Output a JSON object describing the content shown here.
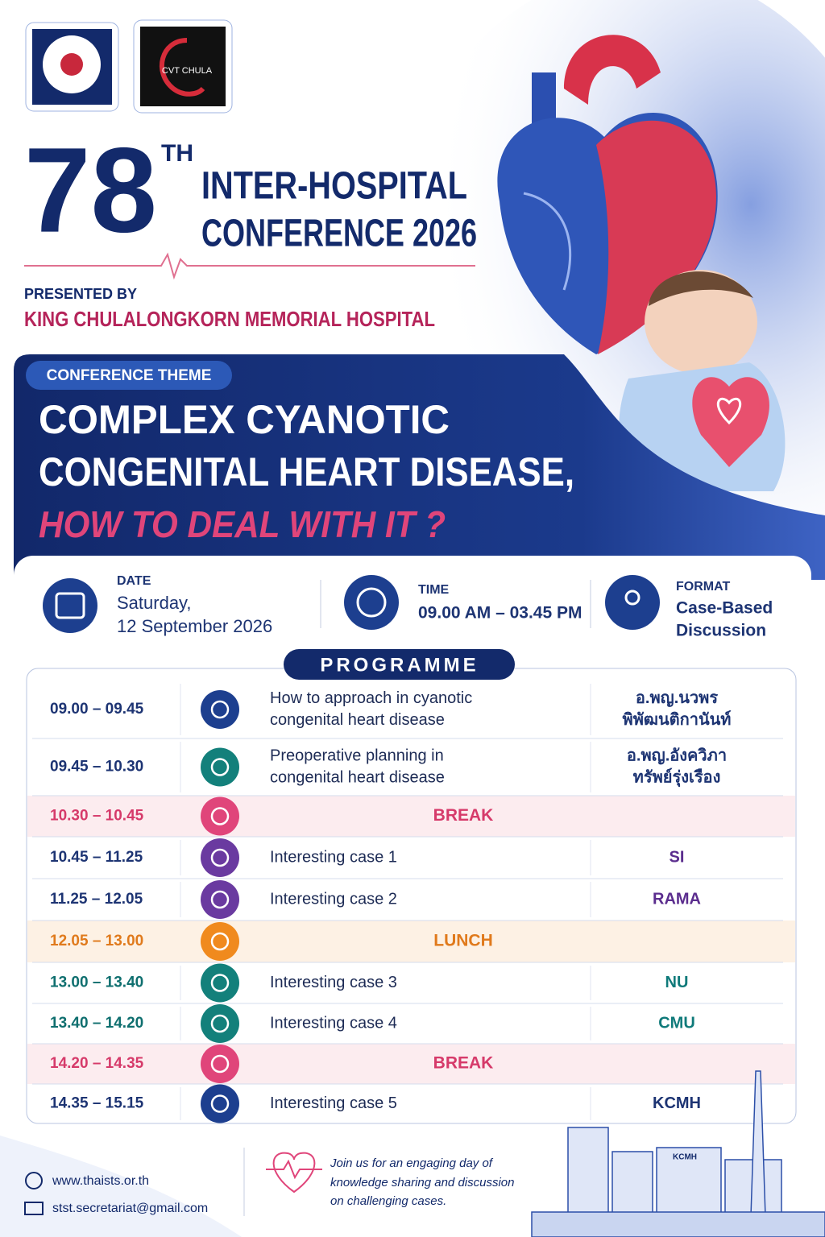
{
  "logos": {
    "cvt": "CVT CHULA"
  },
  "header": {
    "number": "78",
    "suffix": "TH",
    "title_lines": [
      "INTER-HOSPITAL",
      "CONFERENCE 2026"
    ],
    "presented_by": "PRESENTED BY",
    "presenter": "KING CHULALONGKORN MEMORIAL HOSPITAL"
  },
  "theme": {
    "label": "CONFERENCE THEME",
    "title_lines": [
      "COMPLEX CYANOTIC",
      "CONGENITAL HEART DISEASE,"
    ],
    "subtitle": "HOW TO DEAL WITH IT ?"
  },
  "info": {
    "date": {
      "label": "DATE",
      "lines": [
        "Saturday,",
        "12 September 2026"
      ]
    },
    "time": {
      "label": "TIME",
      "lines": [
        "09.00 AM – 03.45 PM"
      ]
    },
    "format": {
      "label": "FORMAT",
      "lines": [
        "Case-Based",
        "Discussion"
      ]
    }
  },
  "programme": {
    "title": "PROGRAMME",
    "rows": [
      {
        "time": "09.00 – 09.45",
        "topic": [
          "How to approach in cyanotic",
          "congenital heart disease"
        ],
        "speaker": [
          "อ.พญ.นวพร",
          "พิพัฒนติกานันท์"
        ],
        "color": "#1d3473",
        "icon_color": "#1d3f8f",
        "speaker_color": "#1d3473"
      },
      {
        "time": "09.45 – 10.30",
        "topic": [
          "Preoperative planning in",
          "congenital heart disease"
        ],
        "speaker": [
          "อ.พญ.อังควิภา",
          "ทรัพย์รุ่งเรือง"
        ],
        "color": "#1d3473",
        "icon_color": "#13807b",
        "speaker_color": "#1d3473"
      },
      {
        "time": "10.30 – 10.45",
        "label": "BREAK",
        "color": "#d63a6a",
        "icon_color": "#e0457a",
        "background": "#fcecef"
      },
      {
        "time": "10.45 – 11.25",
        "topic": [
          "Interesting case 1"
        ],
        "speaker": [
          "SI"
        ],
        "color": "#1d3473",
        "icon_color": "#6a3aa0",
        "speaker_color": "#5b2d8e"
      },
      {
        "time": "11.25 – 12.05",
        "topic": [
          "Interesting case 2"
        ],
        "speaker": [
          "RAMA"
        ],
        "color": "#1d3473",
        "icon_color": "#6a3aa0",
        "speaker_color": "#5b2d8e"
      },
      {
        "time": "12.05 – 13.00",
        "label": "LUNCH",
        "color": "#e07a1c",
        "icon_color": "#f08a1e",
        "background": "#fdf1e4"
      },
      {
        "time": "13.00 – 13.40",
        "topic": [
          "Interesting case 3"
        ],
        "speaker": [
          "NU"
        ],
        "color": "#0f6f6f",
        "icon_color": "#13807b",
        "speaker_color": "#0f7a7a"
      },
      {
        "time": "13.40 – 14.20",
        "topic": [
          "Interesting case 4"
        ],
        "speaker": [
          "CMU"
        ],
        "color": "#0f6f6f",
        "icon_color": "#13807b",
        "speaker_color": "#0f7a7a"
      },
      {
        "time": "14.20 – 14.35",
        "label": "BREAK",
        "color": "#d63a6a",
        "icon_color": "#e0457a",
        "background": "#fcecef"
      },
      {
        "time": "14.35 – 15.15",
        "topic": [
          "Interesting case 5"
        ],
        "speaker": [
          "KCMH"
        ],
        "color": "#1d3473",
        "icon_color": "#1d3f8f",
        "speaker_color": "#1d3473"
      }
    ]
  },
  "footer": {
    "website": "www.thaists.or.th",
    "email": "stst.secretariat@gmail.com",
    "message": [
      "Join us for an engaging day of",
      "knowledge sharing and discussion",
      "on challenging cases."
    ],
    "building_sign": "KCMH"
  }
}
